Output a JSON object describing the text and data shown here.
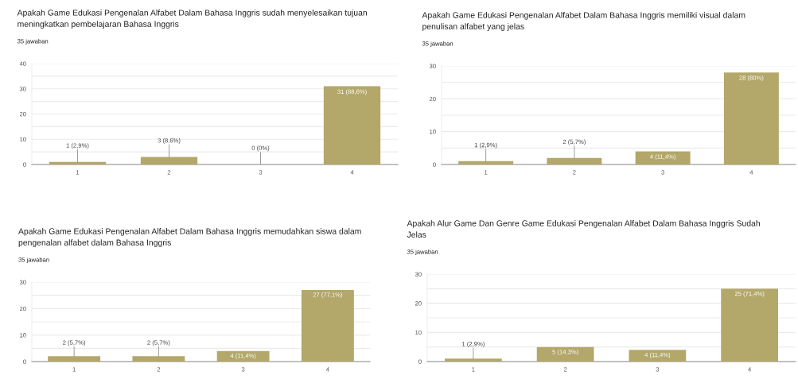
{
  "chart_data": [
    {
      "type": "bar",
      "title": "Apakah Game Edukasi Pengenalan Alfabet Dalam Bahasa Inggris sudah menyelesaikan tujuan meningkatkan pembelajaran Bahasa Inggris",
      "subtitle": "35 jawaban",
      "categories": [
        "1",
        "2",
        "3",
        "4"
      ],
      "values": [
        1,
        3,
        0,
        31
      ],
      "value_labels": [
        "1 (2,9%)",
        "3 (8,6%)",
        "0 (0%)",
        "31 (88,6%)"
      ],
      "color": "#b3a76a",
      "ylim": [
        0,
        40
      ],
      "yticks": [
        0,
        {
          "value": 5,
          "label": null
        },
        10,
        {
          "value": 15,
          "label": null
        },
        20,
        {
          "value": 25,
          "label": null
        },
        30,
        {
          "value": 35,
          "label": null
        },
        40
      ],
      "grid": "y"
    },
    {
      "type": "bar",
      "title": "Apakah Game Edukasi Pengenalan Alfabet Dalam Bahasa Inggris memiliki visual dalam penulisan alfabet yang jelas",
      "subtitle": "35 jawaban",
      "categories": [
        "1",
        "2",
        "3",
        "4"
      ],
      "values": [
        1,
        2,
        4,
        28
      ],
      "value_labels": [
        "1 (2,9%)",
        "2 (5,7%)",
        "4 (11,4%)",
        "28 (80%)"
      ],
      "color": "#b3a76a",
      "ylim": [
        0,
        30
      ],
      "yticks": [
        0,
        {
          "value": 5,
          "label": null
        },
        10,
        {
          "value": 15,
          "label": null
        },
        20,
        {
          "value": 25,
          "label": null
        },
        30
      ],
      "grid": "y"
    },
    {
      "type": "bar",
      "title": "Apakah Game Edukasi Pengenalan Alfabet Dalam Bahasa Inggris memudahkan siswa dalam pengenalan alfabet dalam Bahasa Inggris",
      "subtitle": "35 jawaban",
      "categories": [
        "1",
        "2",
        "3",
        "4"
      ],
      "values": [
        2,
        2,
        4,
        27
      ],
      "value_labels": [
        "2 (5,7%)",
        "2 (5,7%)",
        "4 (11,4%)",
        "27 (77,1%)"
      ],
      "color": "#b3a76a",
      "ylim": [
        0,
        30
      ],
      "yticks": [
        0,
        {
          "value": 5,
          "label": null
        },
        10,
        {
          "value": 15,
          "label": null
        },
        20,
        {
          "value": 25,
          "label": null
        },
        30
      ],
      "grid": "y"
    },
    {
      "type": "bar",
      "title": "Apakah Alur Game Dan Genre Game Edukasi Pengenalan Alfabet Dalam Bahasa Inggris Sudah Jelas",
      "subtitle": "35 jawaban",
      "categories": [
        "1",
        "2",
        "3",
        "4"
      ],
      "values": [
        1,
        5,
        4,
        25
      ],
      "value_labels": [
        "1 (2,9%)",
        "5 (14,3%)",
        "4 (11,4%)",
        "25 (71,4%)"
      ],
      "color": "#b3a76a",
      "ylim": [
        0,
        30
      ],
      "yticks": [
        0,
        {
          "value": 5,
          "label": null
        },
        10,
        {
          "value": 15,
          "label": null
        },
        20,
        {
          "value": 25,
          "label": null
        },
        30
      ],
      "grid": "y"
    }
  ]
}
